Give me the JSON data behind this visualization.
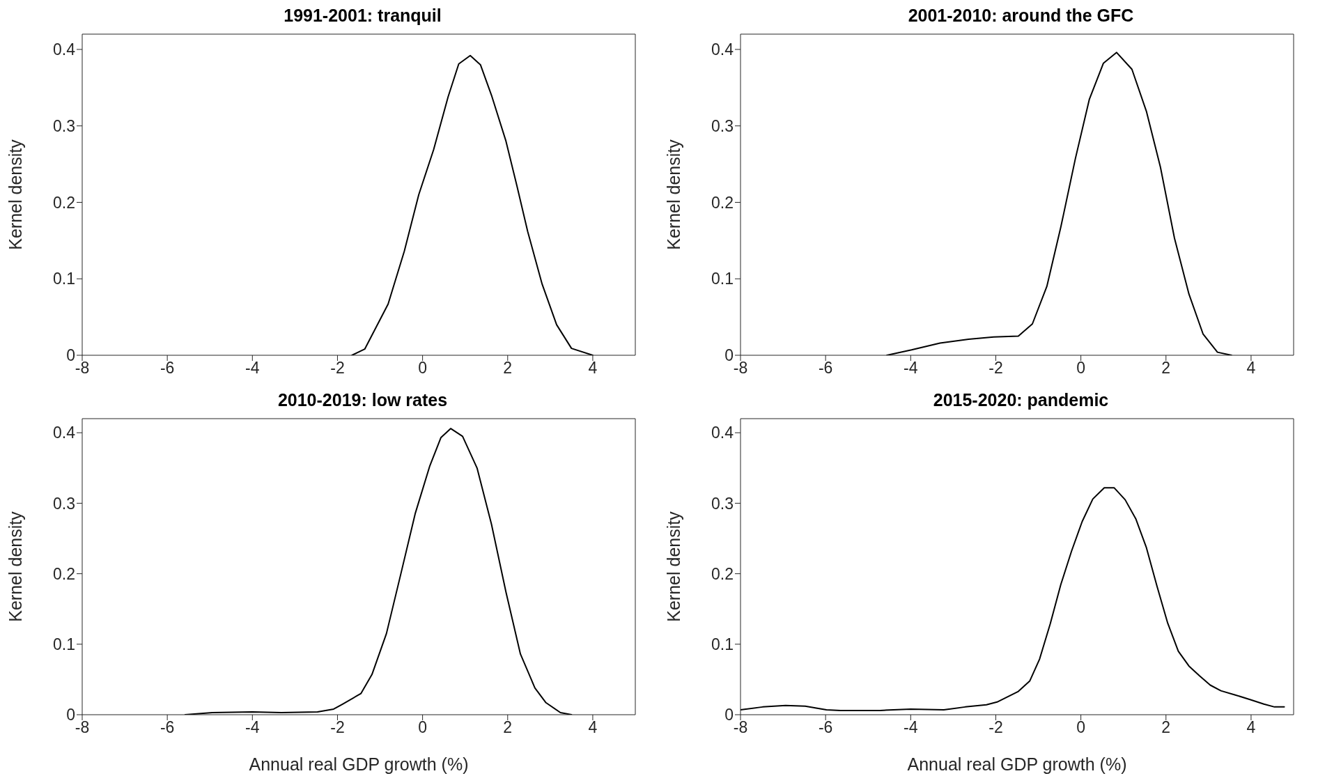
{
  "chart_data": [
    {
      "type": "line",
      "title": "1991-2001: tranquil",
      "ylabel": "Kernel density",
      "x": [
        -1.66,
        -1.36,
        -0.81,
        -0.43,
        -0.09,
        0.26,
        0.6,
        0.85,
        1.12,
        1.36,
        1.62,
        1.96,
        2.22,
        2.47,
        2.81,
        3.15,
        3.5,
        4.0
      ],
      "values": [
        0,
        0.008,
        0.067,
        0.136,
        0.21,
        0.269,
        0.338,
        0.381,
        0.392,
        0.38,
        0.34,
        0.28,
        0.221,
        0.162,
        0.093,
        0.04,
        0.009,
        0
      ],
      "color": "#000000",
      "xlim": [
        -8,
        5
      ],
      "xticks": [
        -8,
        -6,
        -4,
        -2,
        0,
        2,
        4
      ],
      "ylim": [
        0,
        0.42
      ],
      "yticks": [
        0,
        0.1,
        0.2,
        0.3,
        0.4
      ],
      "grid": false
    },
    {
      "type": "line",
      "title": "2001-2010: around the GFC",
      "ylabel": "Kernel density",
      "x": [
        -4.56,
        -3.98,
        -3.31,
        -2.64,
        -2.05,
        -1.47,
        -1.14,
        -0.8,
        -0.47,
        -0.13,
        0.2,
        0.53,
        0.84,
        1.2,
        1.54,
        1.87,
        2.2,
        2.54,
        2.87,
        3.21,
        3.54
      ],
      "values": [
        0,
        0.007,
        0.016,
        0.021,
        0.024,
        0.025,
        0.041,
        0.09,
        0.168,
        0.257,
        0.335,
        0.382,
        0.396,
        0.374,
        0.319,
        0.246,
        0.153,
        0.08,
        0.028,
        0.004,
        0
      ],
      "color": "#000000",
      "xlim": [
        -8,
        5
      ],
      "xticks": [
        -8,
        -6,
        -4,
        -2,
        0,
        2,
        4
      ],
      "ylim": [
        0,
        0.42
      ],
      "yticks": [
        0,
        0.1,
        0.2,
        0.3,
        0.4
      ],
      "grid": false
    },
    {
      "type": "line",
      "title": "2010-2019: low rates",
      "xlabel": "Annual real GDP growth (%)",
      "ylabel": "Kernel density",
      "x": [
        -5.58,
        -4.94,
        -4.0,
        -3.32,
        -2.47,
        -2.09,
        -1.88,
        -1.45,
        -1.19,
        -0.85,
        -0.51,
        -0.17,
        0.17,
        0.43,
        0.66,
        0.94,
        1.28,
        1.62,
        1.96,
        2.3,
        2.64,
        2.9,
        3.24,
        3.5
      ],
      "values": [
        0,
        0.003,
        0.004,
        0.003,
        0.004,
        0.008,
        0.015,
        0.03,
        0.057,
        0.115,
        0.2,
        0.286,
        0.353,
        0.393,
        0.406,
        0.395,
        0.35,
        0.27,
        0.174,
        0.086,
        0.038,
        0.017,
        0.003,
        0
      ],
      "color": "#000000",
      "xlim": [
        -8,
        5
      ],
      "xticks": [
        -8,
        -6,
        -4,
        -2,
        0,
        2,
        4
      ],
      "ylim": [
        0,
        0.42
      ],
      "yticks": [
        0,
        0.1,
        0.2,
        0.3,
        0.4
      ],
      "grid": false
    },
    {
      "type": "line",
      "title": "2015-2020: pandemic",
      "xlabel": "Annual real GDP growth (%)",
      "ylabel": "Kernel density",
      "x": [
        -8.0,
        -7.48,
        -6.94,
        -6.48,
        -5.98,
        -5.65,
        -5.19,
        -4.72,
        -4.0,
        -3.22,
        -2.72,
        -2.22,
        -1.97,
        -1.47,
        -1.2,
        -0.97,
        -0.72,
        -0.47,
        -0.22,
        0.03,
        0.28,
        0.55,
        0.78,
        1.04,
        1.29,
        1.54,
        1.79,
        2.04,
        2.29,
        2.54,
        2.79,
        3.04,
        3.29,
        3.63,
        4.0,
        4.3,
        4.55,
        4.78
      ],
      "values": [
        0.007,
        0.011,
        0.013,
        0.012,
        0.007,
        0.006,
        0.006,
        0.006,
        0.008,
        0.007,
        0.011,
        0.014,
        0.018,
        0.033,
        0.048,
        0.079,
        0.129,
        0.185,
        0.232,
        0.274,
        0.306,
        0.322,
        0.322,
        0.305,
        0.278,
        0.237,
        0.182,
        0.13,
        0.09,
        0.069,
        0.055,
        0.042,
        0.034,
        0.028,
        0.021,
        0.015,
        0.011,
        0.011
      ],
      "color": "#000000",
      "xlim": [
        -8,
        5
      ],
      "xticks": [
        -8,
        -6,
        -4,
        -2,
        0,
        2,
        4
      ],
      "ylim": [
        0,
        0.42
      ],
      "yticks": [
        0,
        0.1,
        0.2,
        0.3,
        0.4
      ],
      "grid": false
    }
  ]
}
